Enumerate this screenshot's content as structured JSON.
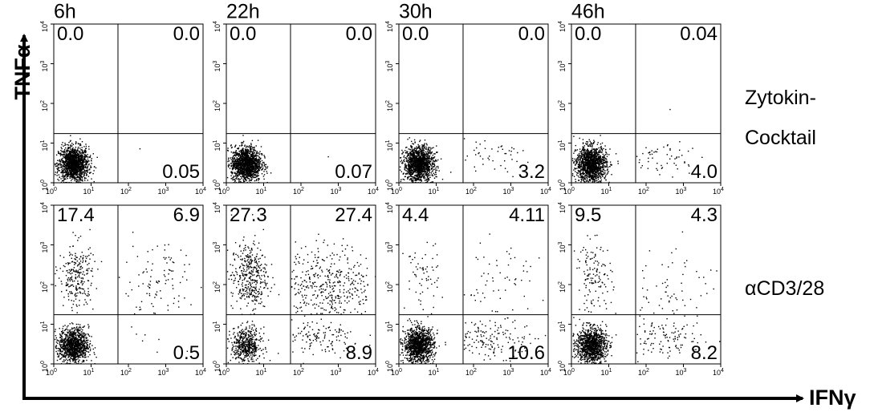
{
  "column_titles": [
    "6h",
    "22h",
    "30h",
    "46h"
  ],
  "row_labels": [
    [
      "Zytokin-",
      "Cocktail"
    ],
    [
      "αCD3/28"
    ]
  ],
  "y_label": "TNFα",
  "x_label": "IFNγ",
  "tick_base": "10",
  "tick_exponents": [
    "0",
    "1",
    "2",
    "3",
    "4"
  ],
  "chart_data": [
    {
      "type": "scatter",
      "values": [
        0,
        0,
        0.05
      ],
      "value_labels": [
        "0.0",
        "0.0",
        "0.05"
      ]
    },
    {
      "type": "scatter",
      "values": [
        0,
        0,
        0.07
      ],
      "value_labels": [
        "0.0",
        "0.0",
        "0.07"
      ]
    },
    {
      "type": "scatter",
      "values": [
        0,
        0,
        3.2
      ],
      "value_labels": [
        "0.0",
        "0.0",
        "3.2"
      ]
    },
    {
      "type": "scatter",
      "values": [
        0,
        0.04,
        4.0
      ],
      "value_labels": [
        "0.0",
        "0.04",
        "4.0"
      ]
    },
    {
      "type": "scatter",
      "values": [
        17.4,
        6.9,
        0.5
      ],
      "value_labels": [
        "17.4",
        "6.9",
        "0.5"
      ]
    },
    {
      "type": "scatter",
      "values": [
        27.3,
        27.4,
        8.9
      ],
      "value_labels": [
        "27.3",
        "27.4",
        "8.9"
      ]
    },
    {
      "type": "scatter",
      "values": [
        4.4,
        4.11,
        10.6
      ],
      "value_labels": [
        "4.4",
        "4.11",
        "10.6"
      ]
    },
    {
      "type": "scatter",
      "values": [
        9.5,
        4.3,
        8.2
      ],
      "value_labels": [
        "9.5",
        "4.3",
        "8.2"
      ]
    }
  ]
}
